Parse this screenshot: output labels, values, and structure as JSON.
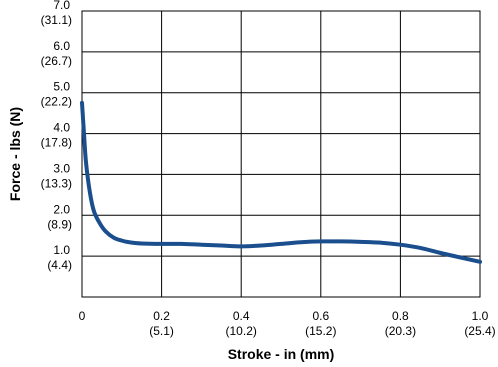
{
  "chart_data": {
    "type": "line",
    "xlabel": "Stroke - in (mm)",
    "ylabel": "Force - lbs (N)",
    "xlim": [
      0,
      1.0
    ],
    "ylim": [
      0,
      7.0
    ],
    "grid": true,
    "x_ticks": [
      {
        "value": 0,
        "label": "0",
        "sublabel": ""
      },
      {
        "value": 0.2,
        "label": "0.2",
        "sublabel": "(5.1)"
      },
      {
        "value": 0.4,
        "label": "0.4",
        "sublabel": "(10.2)"
      },
      {
        "value": 0.6,
        "label": "0.6",
        "sublabel": "(15.2)"
      },
      {
        "value": 0.8,
        "label": "0.8",
        "sublabel": "(20.3)"
      },
      {
        "value": 1.0,
        "label": "1.0",
        "sublabel": "(25.4)"
      }
    ],
    "y_ticks": [
      {
        "value": 1.0,
        "label": "1.0",
        "sublabel": "(4.4)"
      },
      {
        "value": 2.0,
        "label": "2.0",
        "sublabel": "(8.9)"
      },
      {
        "value": 3.0,
        "label": "3.0",
        "sublabel": "(13.3)"
      },
      {
        "value": 4.0,
        "label": "4.0",
        "sublabel": "(17.8)"
      },
      {
        "value": 5.0,
        "label": "5.0",
        "sublabel": "(22.2)"
      },
      {
        "value": 6.0,
        "label": "6.0",
        "sublabel": "(26.7)"
      },
      {
        "value": 7.0,
        "label": "7.0",
        "sublabel": "(31.1)"
      }
    ],
    "series": [
      {
        "color": "#1a4e8c",
        "x": [
          0.0,
          0.005,
          0.01,
          0.02,
          0.03,
          0.045,
          0.06,
          0.08,
          0.1,
          0.125,
          0.15,
          0.2,
          0.25,
          0.3,
          0.35,
          0.4,
          0.45,
          0.5,
          0.55,
          0.6,
          0.65,
          0.7,
          0.75,
          0.8,
          0.85,
          0.9,
          0.95,
          1.0
        ],
        "y": [
          4.75,
          4.0,
          3.3,
          2.55,
          2.1,
          1.8,
          1.6,
          1.45,
          1.38,
          1.33,
          1.31,
          1.3,
          1.3,
          1.28,
          1.26,
          1.24,
          1.26,
          1.3,
          1.34,
          1.36,
          1.36,
          1.35,
          1.33,
          1.28,
          1.2,
          1.08,
          0.97,
          0.86
        ]
      }
    ]
  }
}
